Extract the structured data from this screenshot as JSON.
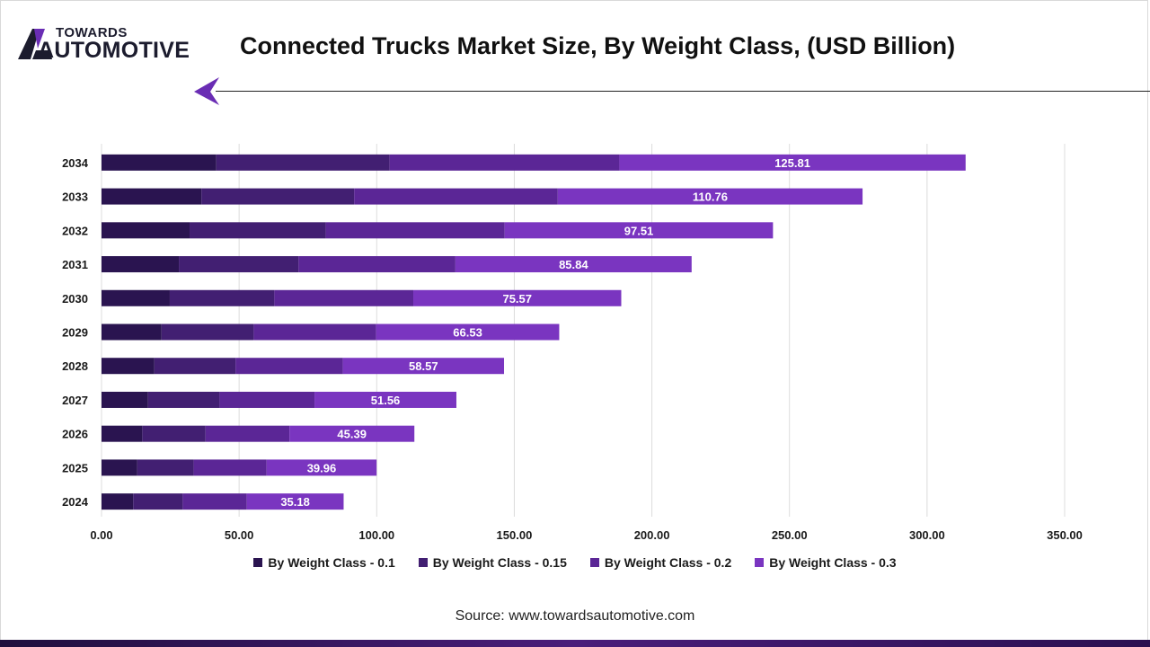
{
  "brand": {
    "logo_top": "TOWARDS",
    "logo_bottom": "AUTOMOTIVE"
  },
  "title": "Connected Trucks Market Size, By Weight Class, (USD Billion)",
  "source": "Source: www.towardsautomotive.com",
  "colors": {
    "series": [
      "#2a1450",
      "#421f72",
      "#5b2696",
      "#7a35c0"
    ],
    "label_text": "#ffffff",
    "grid": "#dcdcdc",
    "accent": "#6a2db4"
  },
  "chart_data": {
    "type": "bar",
    "orientation": "horizontal",
    "stacked": true,
    "title": "Connected Trucks Market Size, By Weight Class, (USD Billion)",
    "categories": [
      "2024",
      "2025",
      "2026",
      "2027",
      "2028",
      "2029",
      "2030",
      "2031",
      "2032",
      "2033",
      "2034"
    ],
    "series": [
      {
        "name": "By Weight Class - 0.1",
        "values": [
          11.5,
          13.0,
          14.8,
          16.9,
          19.2,
          21.8,
          24.8,
          28.1,
          32.0,
          36.3,
          41.7
        ]
      },
      {
        "name": "By Weight Class - 0.15",
        "values": [
          18.0,
          20.5,
          23.0,
          26.0,
          29.5,
          33.5,
          38.0,
          43.5,
          49.5,
          55.5,
          63.0
        ]
      },
      {
        "name": "By Weight Class - 0.2",
        "values": [
          23.3,
          26.5,
          30.5,
          34.5,
          39.0,
          44.5,
          50.5,
          57.0,
          65.0,
          74.0,
          83.5
        ]
      },
      {
        "name": "By Weight Class - 0.3",
        "values": [
          35.18,
          39.96,
          45.39,
          51.56,
          58.57,
          66.53,
          75.57,
          85.84,
          97.51,
          110.76,
          125.81
        ]
      }
    ],
    "data_labels_series": "By Weight Class - 0.3",
    "xlim": [
      0,
      350
    ],
    "xticks": [
      "0.00",
      "50.00",
      "100.00",
      "150.00",
      "200.00",
      "250.00",
      "300.00",
      "350.00"
    ],
    "grid": "vertical",
    "legend_position": "bottom"
  }
}
